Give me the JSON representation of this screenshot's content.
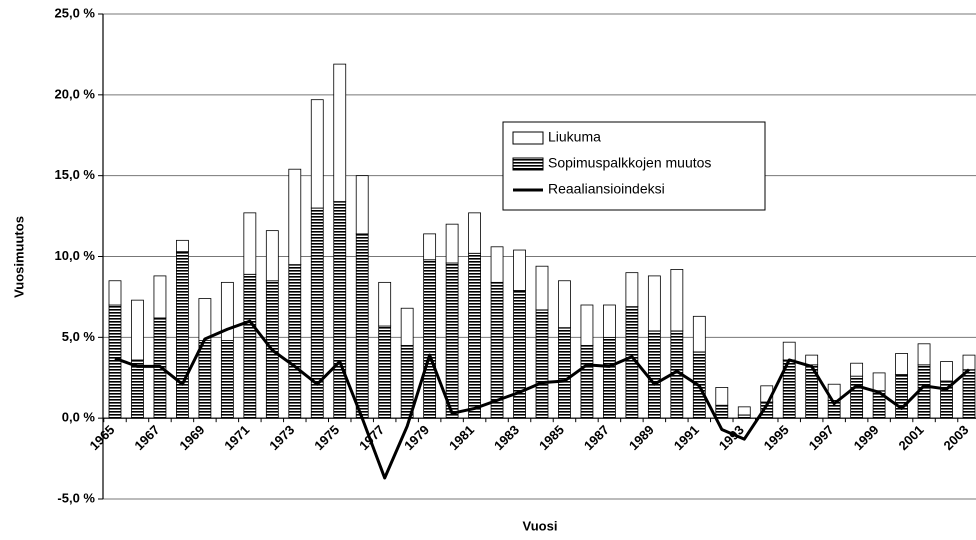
{
  "chart_data": {
    "type": "bar",
    "stacked": true,
    "x_label": "Vuosi",
    "y_label": "Vuosimuutos",
    "categories": [
      "1965",
      null,
      "1967",
      null,
      "1969",
      null,
      "1971",
      null,
      "1973",
      null,
      "1975",
      null,
      "1977",
      null,
      "1979",
      null,
      "1981",
      null,
      "1983",
      null,
      "1985",
      null,
      "1987",
      null,
      "1989",
      null,
      "1991",
      null,
      "1993",
      null,
      "1995",
      null,
      "1997",
      null,
      "1999",
      null,
      "2001",
      null,
      "2003"
    ],
    "series": [
      {
        "name": "Liukuma",
        "type": "bar",
        "color": "#ffffff",
        "values": [
          1.5,
          3.7,
          2.6,
          0.7,
          2.6,
          3.6,
          3.8,
          3.1,
          5.9,
          6.7,
          8.5,
          3.6,
          2.7,
          2.3,
          1.6,
          2.4,
          2.5,
          2.2,
          2.5,
          2.7,
          2.9,
          2.5,
          2.0,
          2.1,
          3.4,
          3.8,
          2.2,
          1.1,
          0.5,
          1.0,
          1.1,
          0.6,
          1.0,
          0.8,
          1.1,
          1.3,
          1.3,
          1.2,
          0.9
        ]
      },
      {
        "name": "Sopimuspalkkojen muutos",
        "type": "bar",
        "color": "#000000",
        "pattern": "horizontal-stripes",
        "values": [
          7.0,
          3.6,
          6.2,
          10.3,
          4.8,
          4.8,
          8.9,
          8.5,
          9.5,
          13.0,
          13.4,
          11.4,
          5.7,
          4.5,
          9.8,
          9.6,
          10.2,
          8.4,
          7.9,
          6.7,
          5.6,
          4.5,
          5.0,
          6.9,
          5.4,
          5.4,
          4.1,
          0.8,
          0.2,
          1.0,
          3.6,
          3.3,
          1.1,
          2.6,
          1.7,
          2.7,
          3.3,
          2.3,
          3.0
        ]
      },
      {
        "name": "Reaaliansioindeksi",
        "type": "line",
        "color": "#000000",
        "values": [
          3.7,
          3.2,
          3.2,
          2.1,
          4.9,
          5.5,
          6.0,
          4.2,
          3.2,
          2.1,
          3.5,
          0,
          -3.7,
          -0.5,
          3.9,
          0.3,
          0.6,
          1.1,
          1.6,
          2.2,
          2.3,
          3.3,
          3.2,
          3.8,
          2.1,
          2.9,
          2.0,
          -0.7,
          -1.3,
          0.8,
          3.6,
          3.2,
          0.9,
          2.0,
          1.6,
          0.6,
          2.0,
          1.8,
          3.0
        ]
      }
    ],
    "ylim": [
      -5,
      25
    ],
    "yticks": [
      {
        "value": -5,
        "label": "-5,0 %"
      },
      {
        "value": 0,
        "label": "0,0 %"
      },
      {
        "value": 5,
        "label": "5,0 %"
      },
      {
        "value": 10,
        "label": "10,0 %"
      },
      {
        "value": 15,
        "label": "15,0 %"
      },
      {
        "value": 20,
        "label": "20,0 %"
      },
      {
        "value": 25,
        "label": "25,0 %"
      }
    ],
    "grid": true,
    "legend": "top-center"
  }
}
